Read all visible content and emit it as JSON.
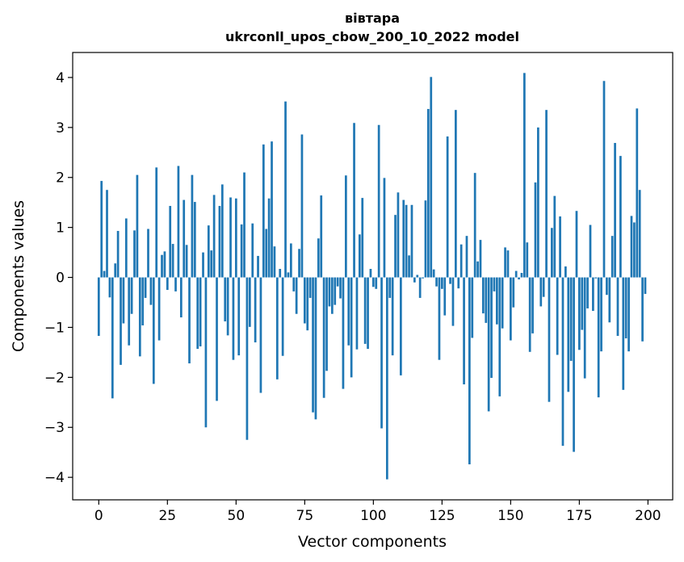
{
  "chart_data": {
    "type": "bar",
    "title": "вівтара",
    "subtitle": "ukrconll_upos_cbow_200_10_2022 model",
    "xlabel": "Vector components",
    "ylabel": "Components values",
    "xlim": [
      -9.5,
      209
    ],
    "ylim": [
      -4.45,
      4.5
    ],
    "xticks": [
      0,
      25,
      50,
      75,
      100,
      125,
      150,
      175,
      200
    ],
    "xtick_labels": [
      "0",
      "25",
      "50",
      "75",
      "100",
      "125",
      "150",
      "175",
      "200"
    ],
    "yticks": [
      -4,
      -3,
      -2,
      -1,
      0,
      1,
      2,
      3,
      4
    ],
    "ytick_labels": [
      "−4",
      "−3",
      "−2",
      "−1",
      "0",
      "1",
      "2",
      "3",
      "4"
    ],
    "grid": false,
    "legend": "none",
    "bar_color": "#1f77b4",
    "x": [
      0,
      1,
      2,
      3,
      4,
      5,
      6,
      7,
      8,
      9,
      10,
      11,
      12,
      13,
      14,
      15,
      16,
      17,
      18,
      19,
      20,
      21,
      22,
      23,
      24,
      25,
      26,
      27,
      28,
      29,
      30,
      31,
      32,
      33,
      34,
      35,
      36,
      37,
      38,
      39,
      40,
      41,
      42,
      43,
      44,
      45,
      46,
      47,
      48,
      49,
      50,
      51,
      52,
      53,
      54,
      55,
      56,
      57,
      58,
      59,
      60,
      61,
      62,
      63,
      64,
      65,
      66,
      67,
      68,
      69,
      70,
      71,
      72,
      73,
      74,
      75,
      76,
      77,
      78,
      79,
      80,
      81,
      82,
      83,
      84,
      85,
      86,
      87,
      88,
      89,
      90,
      91,
      92,
      93,
      94,
      95,
      96,
      97,
      98,
      99,
      100,
      101,
      102,
      103,
      104,
      105,
      106,
      107,
      108,
      109,
      110,
      111,
      112,
      113,
      114,
      115,
      116,
      117,
      118,
      119,
      120,
      121,
      122,
      123,
      124,
      125,
      126,
      127,
      128,
      129,
      130,
      131,
      132,
      133,
      134,
      135,
      136,
      137,
      138,
      139,
      140,
      141,
      142,
      143,
      144,
      145,
      146,
      147,
      148,
      149,
      150,
      151,
      152,
      153,
      154,
      155,
      156,
      157,
      158,
      159,
      160,
      161,
      162,
      163,
      164,
      165,
      166,
      167,
      168,
      169,
      170,
      171,
      172,
      173,
      174,
      175,
      176,
      177,
      178,
      179,
      180,
      181,
      182,
      183,
      184,
      185,
      186,
      187,
      188,
      189,
      190,
      191,
      192,
      193,
      194,
      195,
      196,
      197,
      198,
      199
    ],
    "values": [
      -1.17,
      1.93,
      0.13,
      1.75,
      -0.4,
      -2.42,
      0.28,
      0.93,
      -1.75,
      -0.92,
      1.18,
      -1.36,
      -0.73,
      0.94,
      2.05,
      -1.58,
      -0.96,
      -0.41,
      0.97,
      -0.55,
      -2.13,
      2.2,
      -1.26,
      0.45,
      0.52,
      -0.25,
      1.43,
      0.67,
      -0.28,
      2.23,
      -0.8,
      1.55,
      0.65,
      -1.72,
      2.05,
      1.51,
      -1.43,
      -1.38,
      0.5,
      -3.0,
      1.04,
      0.54,
      1.65,
      -2.47,
      1.43,
      1.86,
      -0.88,
      -1.16,
      1.6,
      -1.65,
      1.58,
      -1.56,
      1.06,
      2.1,
      -3.25,
      -0.99,
      1.08,
      -1.3,
      0.43,
      -2.31,
      2.66,
      0.97,
      1.58,
      2.72,
      0.62,
      -2.04,
      0.17,
      -1.57,
      3.52,
      0.1,
      0.68,
      -0.28,
      -0.73,
      0.57,
      2.86,
      -0.92,
      -1.06,
      -0.41,
      -2.7,
      -2.84,
      0.78,
      1.64,
      -2.41,
      -1.87,
      -0.58,
      -0.73,
      -0.55,
      -0.18,
      -0.42,
      -2.23,
      2.04,
      -1.36,
      -2.0,
      3.09,
      -1.44,
      0.86,
      1.59,
      -1.33,
      -1.43,
      0.17,
      -0.19,
      -0.23,
      3.05,
      -3.02,
      1.99,
      -4.04,
      -0.41,
      -1.56,
      1.25,
      1.7,
      -1.96,
      1.55,
      1.45,
      0.44,
      1.45,
      -0.1,
      0.05,
      -0.41,
      -0.02,
      1.54,
      3.37,
      4.01,
      0.16,
      -0.18,
      -1.65,
      -0.23,
      -0.76,
      2.82,
      -0.13,
      -0.97,
      3.35,
      -0.22,
      0.66,
      -2.14,
      0.83,
      -3.74,
      -1.21,
      2.09,
      0.32,
      0.75,
      -0.72,
      -0.91,
      -2.68,
      -2.01,
      -0.28,
      -0.94,
      -2.38,
      -1.02,
      0.6,
      0.54,
      -1.26,
      -0.6,
      0.13,
      -0.04,
      0.09,
      4.09,
      0.7,
      -1.49,
      -1.12,
      1.9,
      3.0,
      -0.58,
      -0.39,
      3.35,
      -2.49,
      0.99,
      1.63,
      -1.55,
      1.22,
      -3.37,
      0.22,
      -2.29,
      -1.67,
      -3.49,
      1.33,
      -1.45,
      -1.05,
      -2.02,
      -0.62,
      1.05,
      -0.67,
      -0.02,
      -2.4,
      -1.48,
      3.93,
      -0.35,
      -0.9,
      0.83,
      2.69,
      -1.17,
      2.43,
      -2.25,
      -1.22,
      -1.48,
      1.23,
      1.1,
      3.38,
      1.75,
      -1.28,
      -0.33
    ]
  }
}
